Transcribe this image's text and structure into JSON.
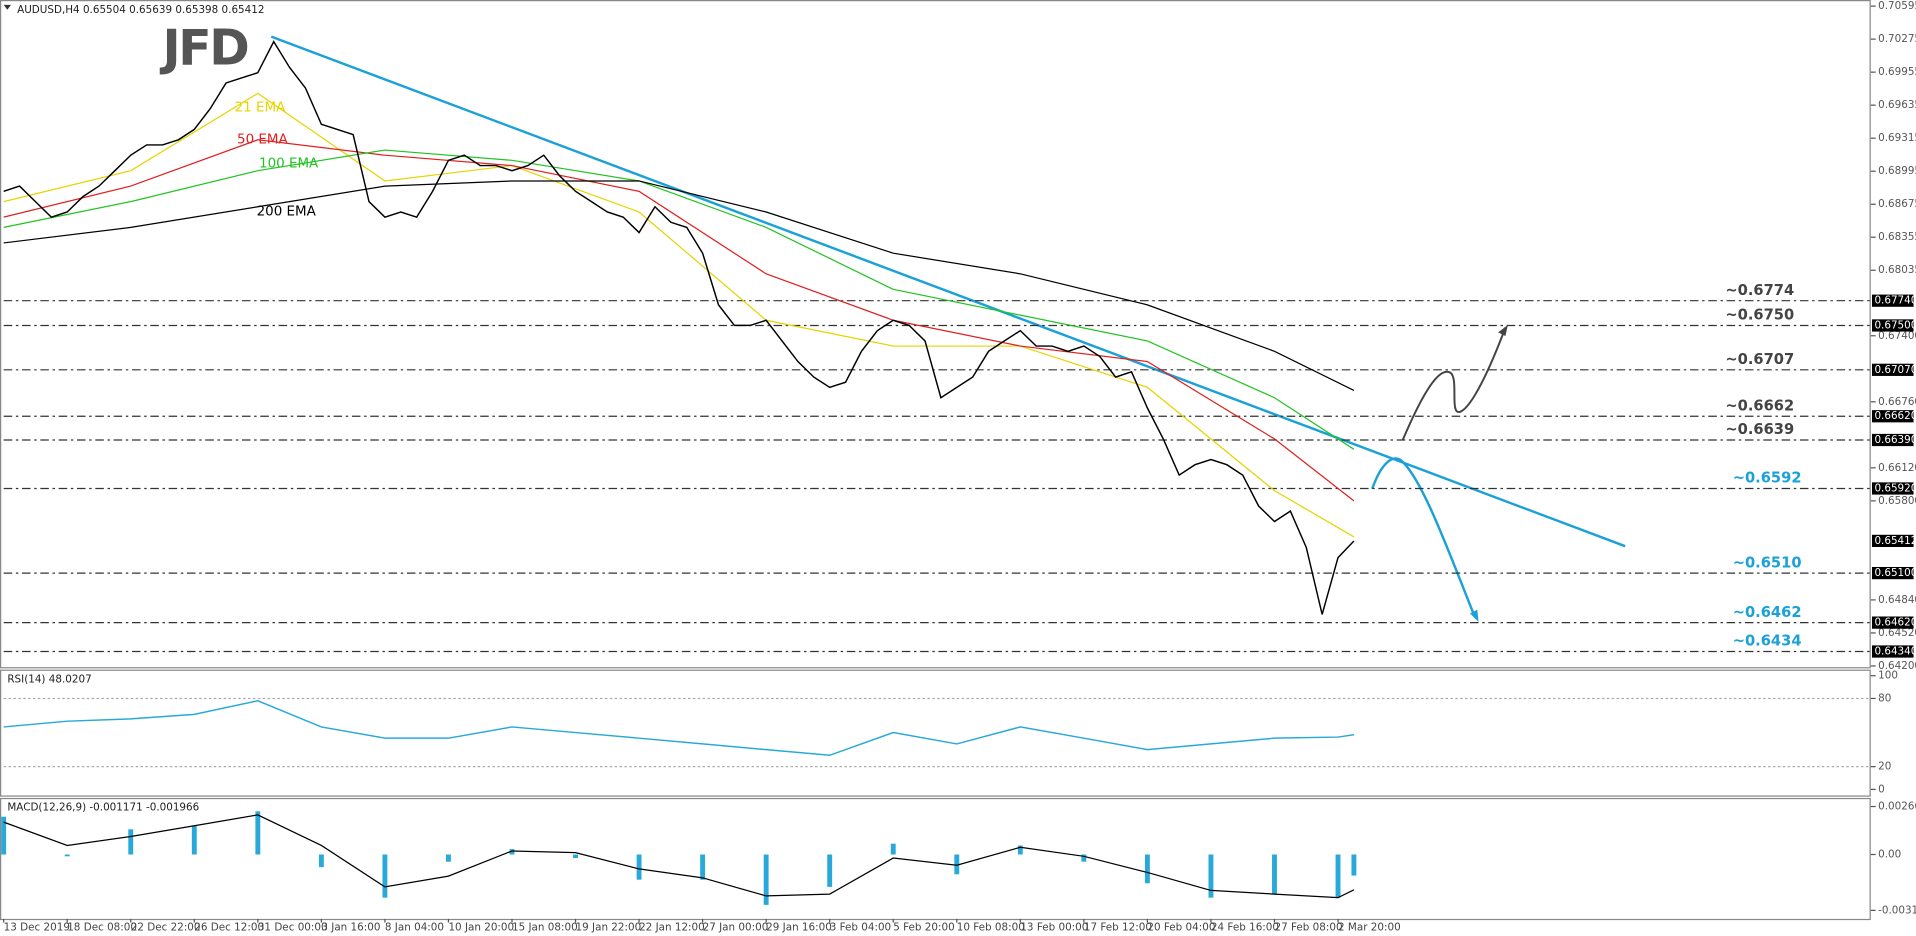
{
  "chart_data": [
    {
      "type": "line",
      "title": "AUDUSD,H4  0.65504 0.65639 0.65398 0.65412",
      "logo": "JFD",
      "categories": [
        "13 Dec 2019",
        null,
        null,
        null,
        "18 Dec 08:00",
        null,
        null,
        null,
        "22 Dec 22:00",
        null,
        null,
        null,
        "26 Dec 12:00",
        null,
        null,
        null,
        "31 Dec 00:00",
        null,
        null,
        null,
        "3 Jan 16:00",
        null,
        null,
        null,
        "8 Jan 04:00",
        null,
        null,
        null,
        "10 Jan 20:00",
        null,
        null,
        null,
        "15 Jan 08:00",
        null,
        null,
        null,
        "19 Jan 22:00",
        null,
        null,
        null,
        "22 Jan 12:00",
        null,
        null,
        null,
        "27 Jan 00:00",
        null,
        null,
        null,
        "29 Jan 16:00",
        null,
        null,
        null,
        "3 Feb 04:00",
        null,
        null,
        null,
        "5 Feb 20:00",
        null,
        null,
        null,
        "10 Feb 08:00",
        null,
        null,
        null,
        "13 Feb 00:00",
        null,
        null,
        null,
        "17 Feb 12:00",
        null,
        null,
        null,
        "20 Feb 04:00",
        null,
        null,
        null,
        "24 Feb 16:00",
        null,
        null,
        null,
        "27 Feb 08:00",
        null,
        null,
        null,
        "2 Mar 20:00",
        null
      ],
      "color": "#000000",
      "values": [
        0.688,
        0.6885,
        0.687,
        0.6855,
        0.686,
        0.6875,
        0.6885,
        0.69,
        0.6915,
        0.6925,
        0.6925,
        0.693,
        0.694,
        0.696,
        0.6985,
        0.699,
        0.6995,
        0.7025,
        0.7,
        0.698,
        0.6945,
        0.694,
        0.6935,
        0.687,
        0.6855,
        0.686,
        0.6855,
        0.688,
        0.691,
        0.6915,
        0.6905,
        0.6905,
        0.69,
        0.6905,
        0.6915,
        0.6895,
        0.688,
        0.687,
        0.686,
        0.6855,
        0.684,
        0.6865,
        0.685,
        0.6845,
        0.682,
        0.677,
        0.675,
        0.675,
        0.6755,
        0.6735,
        0.6715,
        0.67,
        0.669,
        0.6695,
        0.6725,
        0.6745,
        0.6755,
        0.675,
        0.6735,
        0.668,
        0.669,
        0.67,
        0.6725,
        0.6735,
        0.6745,
        0.673,
        0.673,
        0.6725,
        0.673,
        0.672,
        0.67,
        0.6705,
        0.667,
        0.664,
        0.6605,
        0.6615,
        0.662,
        0.6615,
        0.6605,
        0.6575,
        0.656,
        0.657,
        0.6535,
        0.647,
        0.6525,
        0.65412
      ],
      "last": {
        "value": 0.65412,
        "label": "0.65412"
      },
      "indicators": [
        {
          "name": "21 EMA",
          "color": "#e6d400",
          "x": [
            0,
            8,
            16,
            24,
            32,
            40,
            48,
            56,
            64,
            72,
            80,
            85
          ],
          "values": [
            0.687,
            0.69,
            0.6975,
            0.689,
            0.6905,
            0.686,
            0.6755,
            0.673,
            0.673,
            0.669,
            0.659,
            0.6545
          ]
        },
        {
          "name": "50 EMA",
          "color": "#e02020",
          "x": [
            0,
            8,
            16,
            24,
            32,
            40,
            48,
            56,
            64,
            72,
            80,
            85
          ],
          "values": [
            0.6855,
            0.6885,
            0.693,
            0.6915,
            0.6905,
            0.688,
            0.68,
            0.6755,
            0.673,
            0.6715,
            0.664,
            0.658
          ]
        },
        {
          "name": "100 EMA",
          "color": "#22c322",
          "x": [
            0,
            8,
            16,
            24,
            32,
            40,
            48,
            56,
            64,
            72,
            80,
            85
          ],
          "values": [
            0.6845,
            0.687,
            0.69,
            0.692,
            0.691,
            0.689,
            0.6845,
            0.6785,
            0.676,
            0.6735,
            0.668,
            0.663
          ]
        },
        {
          "name": "200 EMA",
          "color": "#000000",
          "x": [
            0,
            8,
            16,
            24,
            32,
            40,
            48,
            56,
            64,
            72,
            80,
            85
          ],
          "values": [
            0.683,
            0.6845,
            0.6865,
            0.6885,
            0.689,
            0.689,
            0.686,
            0.682,
            0.68,
            0.677,
            0.6725,
            0.6687
          ]
        }
      ],
      "levels": [
        {
          "value": 0.6774,
          "label": "~0.6774",
          "tag": "0.67740",
          "color": "#444444"
        },
        {
          "value": 0.675,
          "label": "~0.6750",
          "tag": "0.67500",
          "color": "#444444"
        },
        {
          "value": 0.6707,
          "label": "~0.6707",
          "tag": "0.67070",
          "color": "#444444"
        },
        {
          "value": 0.6662,
          "label": "~0.6662",
          "tag": "0.66620",
          "color": "#444444"
        },
        {
          "value": 0.6639,
          "label": "~0.6639",
          "tag": "0.66390",
          "color": "#444444"
        },
        {
          "value": 0.6592,
          "label": "~0.6592",
          "tag": "0.65920",
          "color": "#1ba1d8"
        },
        {
          "value": 0.651,
          "label": "~0.6510",
          "tag": "0.65100",
          "color": "#1ba1d8"
        },
        {
          "value": 0.6462,
          "label": "~0.6462",
          "tag": "0.64620",
          "color": "#1ba1d8"
        },
        {
          "value": 0.6434,
          "label": "~0.6434",
          "tag": "0.64340",
          "color": "#1ba1d8"
        }
      ],
      "ylim": [
        0.642,
        0.70595
      ],
      "yticks": [
        {
          "value": 0.70595,
          "label": "0.70595"
        },
        {
          "value": 0.70275,
          "label": "0.70275"
        },
        {
          "value": 0.69955,
          "label": "0.69955"
        },
        {
          "value": 0.69635,
          "label": "0.69635"
        },
        {
          "value": 0.69315,
          "label": "0.69315"
        },
        {
          "value": 0.68995,
          "label": "0.68995"
        },
        {
          "value": 0.68675,
          "label": "0.68675"
        },
        {
          "value": 0.68355,
          "label": "0.68355"
        },
        {
          "value": 0.68035,
          "label": "0.68035"
        },
        {
          "value": 0.674,
          "label": "0.67400"
        },
        {
          "value": 0.6676,
          "label": "0.66760"
        },
        {
          "value": 0.6612,
          "label": "0.66120"
        },
        {
          "value": 0.658,
          "label": "0.65800"
        },
        {
          "value": 0.6484,
          "label": "0.64840"
        },
        {
          "value": 0.6452,
          "label": "0.64520"
        },
        {
          "value": 0.642,
          "label": "0.64200"
        }
      ]
    },
    {
      "type": "line",
      "title": "RSI(14) 48.0207",
      "color": "#29a9d9",
      "x": [
        0,
        4,
        8,
        12,
        16,
        20,
        24,
        28,
        32,
        36,
        40,
        44,
        48,
        52,
        56,
        60,
        64,
        68,
        72,
        76,
        80,
        84,
        85
      ],
      "values": [
        55,
        60,
        62,
        66,
        78,
        55,
        45,
        45,
        55,
        50,
        45,
        40,
        35,
        30,
        50,
        40,
        55,
        45,
        35,
        40,
        45,
        46,
        48.0207
      ],
      "levels": [
        20,
        80
      ],
      "ylim": [
        0,
        100
      ],
      "yticks": [
        0,
        20,
        80,
        100
      ]
    },
    {
      "type": "macd",
      "title": "MACD(12,26,9) -0.001171 -0.001966",
      "x": [
        0,
        4,
        8,
        12,
        16,
        20,
        24,
        28,
        32,
        36,
        40,
        44,
        48,
        52,
        56,
        60,
        64,
        68,
        72,
        76,
        80,
        84,
        85
      ],
      "histogram": {
        "color": "#29a9d9",
        "values": [
          0.0021,
          -0.0001,
          0.0014,
          0.0016,
          0.0024,
          -0.0007,
          -0.0024,
          -0.0004,
          0.0003,
          -0.0002,
          -0.0014,
          -0.0014,
          -0.0028,
          -0.0018,
          0.0006,
          -0.0011,
          0.0005,
          -0.0004,
          -0.0016,
          -0.0024,
          -0.0022,
          -0.0024,
          -0.001171
        ]
      },
      "signal": {
        "color": "#000000",
        "values": [
          0.0018,
          0.0005,
          0.001,
          0.0016,
          0.0022,
          0.0005,
          -0.0018,
          -0.0012,
          0.0002,
          0.0001,
          -0.0008,
          -0.0013,
          -0.0023,
          -0.0022,
          -0.0002,
          -0.0006,
          0.0004,
          -0.0001,
          -0.001,
          -0.002,
          -0.0022,
          -0.0024,
          -0.001966
        ]
      },
      "ylim": [
        -0.00358,
        0.00301
      ],
      "yticks": [
        {
          "value": -0.003107,
          "label": "-0.003107"
        },
        {
          "value": 0,
          "label": "0.00"
        },
        {
          "value": 0.002667,
          "label": "0.002667"
        }
      ]
    }
  ]
}
